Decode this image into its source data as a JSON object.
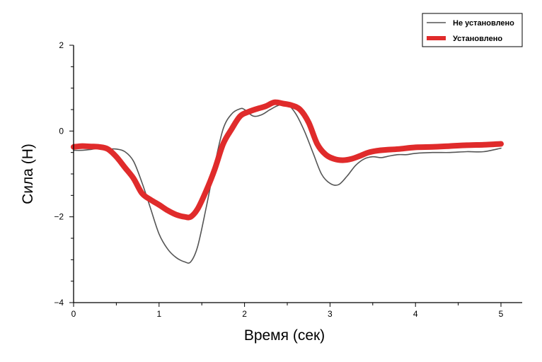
{
  "chart_data": {
    "type": "line",
    "title": "",
    "xlabel": "Время (сек)",
    "ylabel": "Сила (Н)",
    "xlim": [
      0,
      5
    ],
    "ylim": [
      -4,
      2
    ],
    "x_ticks": [
      "0",
      "1",
      "2",
      "3",
      "4",
      "5"
    ],
    "y_ticks": [
      "2",
      "0",
      "−2",
      "−4"
    ],
    "grid": false,
    "legend_position": "top-right",
    "series": [
      {
        "name": "Не установлено",
        "color": "#555555",
        "x": [
          0,
          0.1,
          0.2,
          0.3,
          0.4,
          0.5,
          0.6,
          0.7,
          0.8,
          0.9,
          1.0,
          1.1,
          1.2,
          1.3,
          1.37,
          1.45,
          1.55,
          1.65,
          1.75,
          1.85,
          1.95,
          2.0,
          2.1,
          2.2,
          2.3,
          2.4,
          2.5,
          2.6,
          2.7,
          2.8,
          2.9,
          3.0,
          3.1,
          3.2,
          3.3,
          3.4,
          3.5,
          3.6,
          3.7,
          3.8,
          3.9,
          4.0,
          4.2,
          4.4,
          4.6,
          4.8,
          5.0
        ],
        "y": [
          -0.45,
          -0.45,
          -0.43,
          -0.4,
          -0.42,
          -0.42,
          -0.48,
          -0.7,
          -1.2,
          -1.8,
          -2.4,
          -2.75,
          -2.95,
          -3.05,
          -3.05,
          -2.7,
          -1.8,
          -0.8,
          0.05,
          0.4,
          0.52,
          0.5,
          0.35,
          0.38,
          0.5,
          0.6,
          0.62,
          0.4,
          0.0,
          -0.5,
          -1.0,
          -1.22,
          -1.25,
          -1.05,
          -0.8,
          -0.65,
          -0.6,
          -0.62,
          -0.58,
          -0.55,
          -0.55,
          -0.52,
          -0.5,
          -0.5,
          -0.48,
          -0.48,
          -0.4
        ]
      },
      {
        "name": "Установлено",
        "color": "#e02b2b",
        "x": [
          0,
          0.1,
          0.2,
          0.3,
          0.4,
          0.5,
          0.6,
          0.7,
          0.8,
          0.9,
          1.0,
          1.1,
          1.2,
          1.3,
          1.37,
          1.45,
          1.55,
          1.65,
          1.75,
          1.85,
          1.95,
          2.05,
          2.15,
          2.25,
          2.35,
          2.45,
          2.55,
          2.65,
          2.75,
          2.85,
          2.95,
          3.05,
          3.15,
          3.25,
          3.35,
          3.45,
          3.55,
          3.65,
          3.8,
          4.0,
          4.2,
          4.4,
          4.6,
          4.8,
          5.0
        ],
        "y": [
          -0.37,
          -0.35,
          -0.36,
          -0.37,
          -0.42,
          -0.6,
          -0.85,
          -1.1,
          -1.45,
          -1.6,
          -1.72,
          -1.85,
          -1.95,
          -2.0,
          -2.0,
          -1.82,
          -1.4,
          -0.9,
          -0.3,
          0.05,
          0.35,
          0.45,
          0.52,
          0.58,
          0.67,
          0.64,
          0.6,
          0.5,
          0.2,
          -0.3,
          -0.55,
          -0.65,
          -0.68,
          -0.65,
          -0.58,
          -0.5,
          -0.46,
          -0.44,
          -0.42,
          -0.38,
          -0.37,
          -0.35,
          -0.33,
          -0.32,
          -0.3
        ]
      }
    ]
  }
}
